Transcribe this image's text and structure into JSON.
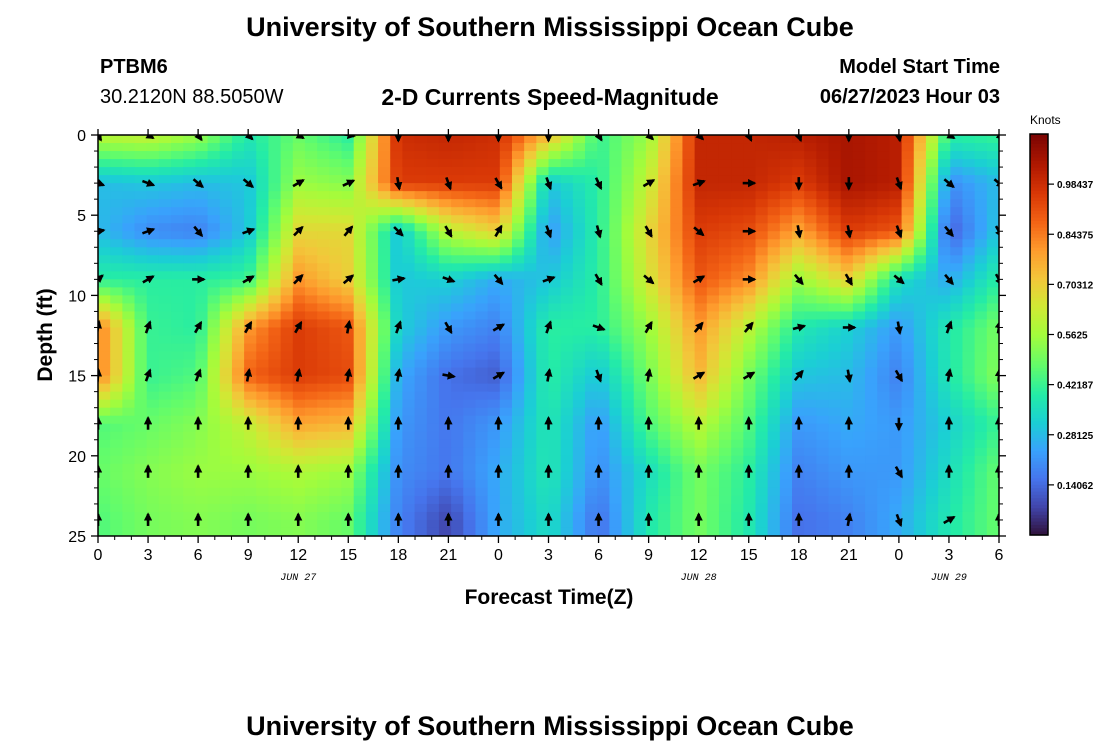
{
  "page": {
    "title": "University of Southern Mississippi Ocean Cube",
    "station_id": "PTBM6",
    "station_coords": "30.2120N  88.5050W",
    "model_start_label": "Model Start Time",
    "model_start_time": "06/27/2023 Hour 03",
    "footer_title": "University of Southern Mississippi Ocean Cube"
  },
  "chart_data": {
    "type": "heatmap",
    "title": "2-D Currents Speed-Magnitude",
    "xlabel": "Forecast Time(Z)",
    "ylabel": "Depth (ft)",
    "ylim": [
      0,
      25
    ],
    "xlim": [
      0,
      54
    ],
    "y_ticks": [
      0,
      5,
      10,
      15,
      20,
      25
    ],
    "x_ticks": [
      0,
      3,
      6,
      9,
      12,
      15,
      18,
      21,
      24,
      27,
      30,
      33,
      36,
      39,
      42,
      45,
      48,
      51,
      54
    ],
    "x_tick_labels": [
      "0",
      "3",
      "6",
      "9",
      "12",
      "15",
      "18",
      "21",
      "0",
      "3",
      "6",
      "9",
      "12",
      "15",
      "18",
      "21",
      "0",
      "3",
      "6"
    ],
    "date_labels": [
      {
        "text": "JUN 27",
        "x": 12
      },
      {
        "text": "JUN 28",
        "x": 36
      },
      {
        "text": "JUN 29",
        "x": 51
      }
    ],
    "colorbar": {
      "units": "Knots",
      "range": [
        0,
        1.125
      ],
      "ticks": [
        0.14062,
        0.28125,
        0.42187,
        0.5625,
        0.70312,
        0.84375,
        0.98437
      ],
      "tick_labels": [
        "0.14062",
        "0.28125",
        "0.42187",
        "0.5625",
        "0.70312",
        "0.84375",
        "0.98437"
      ]
    },
    "depths": [
      0,
      3,
      6,
      9,
      12,
      15,
      18,
      21,
      24
    ],
    "times": [
      0,
      3,
      6,
      9,
      12,
      15,
      18,
      21,
      24,
      27,
      30,
      33,
      36,
      39,
      42,
      45,
      48,
      51,
      54
    ],
    "speed_knots": [
      [
        0.6,
        0.62,
        0.55,
        0.38,
        0.48,
        0.4,
        0.98,
        1.0,
        0.98,
        0.75,
        0.42,
        0.55,
        1.0,
        1.0,
        1.02,
        1.05,
        1.02,
        0.4,
        0.42
      ],
      [
        0.28,
        0.3,
        0.28,
        0.3,
        0.55,
        0.52,
        0.95,
        0.95,
        0.95,
        0.3,
        0.4,
        0.62,
        1.0,
        1.0,
        0.95,
        1.05,
        1.02,
        0.2,
        0.28
      ],
      [
        0.28,
        0.2,
        0.18,
        0.3,
        0.68,
        0.68,
        0.3,
        0.6,
        0.7,
        0.22,
        0.4,
        0.68,
        0.95,
        0.92,
        0.78,
        0.95,
        0.9,
        0.12,
        0.3
      ],
      [
        0.4,
        0.4,
        0.4,
        0.42,
        0.8,
        0.7,
        0.3,
        0.32,
        0.25,
        0.3,
        0.4,
        0.65,
        0.9,
        0.82,
        0.55,
        0.7,
        0.35,
        0.25,
        0.4
      ],
      [
        0.85,
        0.42,
        0.4,
        0.8,
        0.95,
        0.9,
        0.32,
        0.22,
        0.18,
        0.4,
        0.4,
        0.55,
        0.8,
        0.6,
        0.38,
        0.32,
        0.22,
        0.38,
        0.5
      ],
      [
        0.85,
        0.42,
        0.45,
        0.88,
        0.95,
        0.92,
        0.25,
        0.15,
        0.12,
        0.4,
        0.3,
        0.5,
        0.75,
        0.5,
        0.3,
        0.28,
        0.18,
        0.38,
        0.52
      ],
      [
        0.45,
        0.48,
        0.52,
        0.62,
        0.78,
        0.75,
        0.22,
        0.16,
        0.22,
        0.38,
        0.22,
        0.45,
        0.6,
        0.45,
        0.22,
        0.25,
        0.22,
        0.32,
        0.42
      ],
      [
        0.48,
        0.52,
        0.55,
        0.55,
        0.58,
        0.55,
        0.2,
        0.16,
        0.25,
        0.38,
        0.2,
        0.35,
        0.5,
        0.4,
        0.18,
        0.22,
        0.22,
        0.35,
        0.48
      ],
      [
        0.45,
        0.5,
        0.52,
        0.5,
        0.52,
        0.48,
        0.18,
        0.08,
        0.25,
        0.35,
        0.15,
        0.38,
        0.5,
        0.38,
        0.15,
        0.18,
        0.25,
        0.38,
        0.48
      ]
    ],
    "direction_deg": [
      [
        150,
        120,
        145,
        135,
        120,
        100,
        180,
        180,
        180,
        180,
        150,
        135,
        135,
        155,
        160,
        180,
        170,
        120,
        135
      ],
      [
        110,
        110,
        130,
        130,
        60,
        65,
        170,
        160,
        150,
        160,
        155,
        60,
        70,
        90,
        180,
        180,
        160,
        130,
        130
      ],
      [
        80,
        70,
        140,
        70,
        45,
        40,
        135,
        150,
        30,
        160,
        165,
        150,
        130,
        90,
        170,
        170,
        160,
        140,
        150
      ],
      [
        50,
        60,
        90,
        60,
        45,
        50,
        80,
        110,
        140,
        70,
        150,
        130,
        60,
        90,
        140,
        150,
        130,
        140,
        150
      ],
      [
        10,
        20,
        30,
        30,
        30,
        10,
        20,
        150,
        60,
        20,
        110,
        30,
        40,
        40,
        75,
        90,
        170,
        20,
        10
      ],
      [
        5,
        20,
        20,
        10,
        10,
        10,
        10,
        100,
        60,
        10,
        160,
        10,
        60,
        60,
        40,
        170,
        150,
        10,
        5
      ],
      [
        0,
        0,
        0,
        0,
        0,
        0,
        0,
        0,
        0,
        0,
        0,
        0,
        0,
        0,
        0,
        0,
        180,
        0,
        0
      ],
      [
        0,
        0,
        0,
        0,
        0,
        0,
        0,
        0,
        0,
        0,
        0,
        0,
        0,
        0,
        0,
        0,
        150,
        0,
        0
      ],
      [
        0,
        0,
        0,
        0,
        0,
        0,
        0,
        0,
        0,
        0,
        0,
        0,
        0,
        0,
        0,
        10,
        160,
        60,
        0
      ]
    ]
  }
}
